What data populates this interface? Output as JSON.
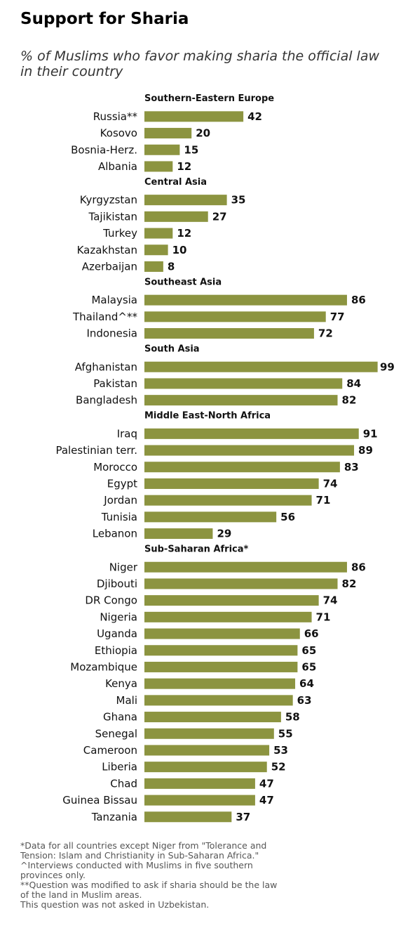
{
  "header": {
    "title": "Support for Sharia",
    "subtitle": "% of Muslims who favor making sharia the official law in their country"
  },
  "colors": {
    "bar": "#8c9440",
    "text": "#111111"
  },
  "chart_data": {
    "type": "bar",
    "orientation": "horizontal",
    "title": "Support for Sharia",
    "subtitle": "% of Muslims who favor making sharia the official law in their country",
    "xlim": [
      0,
      100
    ],
    "grid": false,
    "groups": [
      {
        "name": "Southern-Eastern  Europe",
        "categories": [
          "Russia**",
          "Kosovo",
          "Bosnia-Herz.",
          "Albania"
        ],
        "values": [
          42,
          20,
          15,
          12
        ]
      },
      {
        "name": "Central Asia",
        "categories": [
          "Kyrgyzstan",
          "Tajikistan",
          "Turkey",
          "Kazakhstan",
          "Azerbaijan"
        ],
        "values": [
          35,
          27,
          12,
          10,
          8
        ]
      },
      {
        "name": "Southeast  Asia",
        "categories": [
          "Malaysia",
          "Thailand^**",
          "Indonesia"
        ],
        "values": [
          86,
          77,
          72
        ]
      },
      {
        "name": "South  Asia",
        "categories": [
          "Afghanistan",
          "Pakistan",
          "Bangladesh"
        ],
        "values": [
          99,
          84,
          82
        ]
      },
      {
        "name": "Middle East-North  Africa",
        "categories": [
          "Iraq",
          "Palestinian terr.",
          "Morocco",
          "Egypt",
          "Jordan",
          "Tunisia",
          "Lebanon"
        ],
        "values": [
          91,
          89,
          83,
          74,
          71,
          56,
          29
        ]
      },
      {
        "name": "Sub-Saharan  Africa*",
        "categories": [
          "Niger",
          "Djibouti",
          "DR Congo",
          "Nigeria",
          "Uganda",
          "Ethiopia",
          "Mozambique",
          "Kenya",
          "Mali",
          "Ghana",
          "Senegal",
          "Cameroon",
          "Liberia",
          "Chad",
          "Guinea Bissau",
          "Tanzania"
        ],
        "values": [
          86,
          82,
          74,
          71,
          66,
          65,
          65,
          64,
          63,
          58,
          55,
          53,
          52,
          47,
          47,
          37
        ]
      }
    ]
  },
  "footnotes": [
    "*Data for all countries except Niger from \"Tolerance and",
    "Tension: Islam and Christianity in Sub-Saharan Africa.\"",
    "^Interviews conducted with Muslims in five  southern",
    "provinces only.",
    "**Question was modified to ask if sharia should be the law",
    "of the land in Muslim areas.",
    "This question was not asked in Uzbekistan."
  ]
}
